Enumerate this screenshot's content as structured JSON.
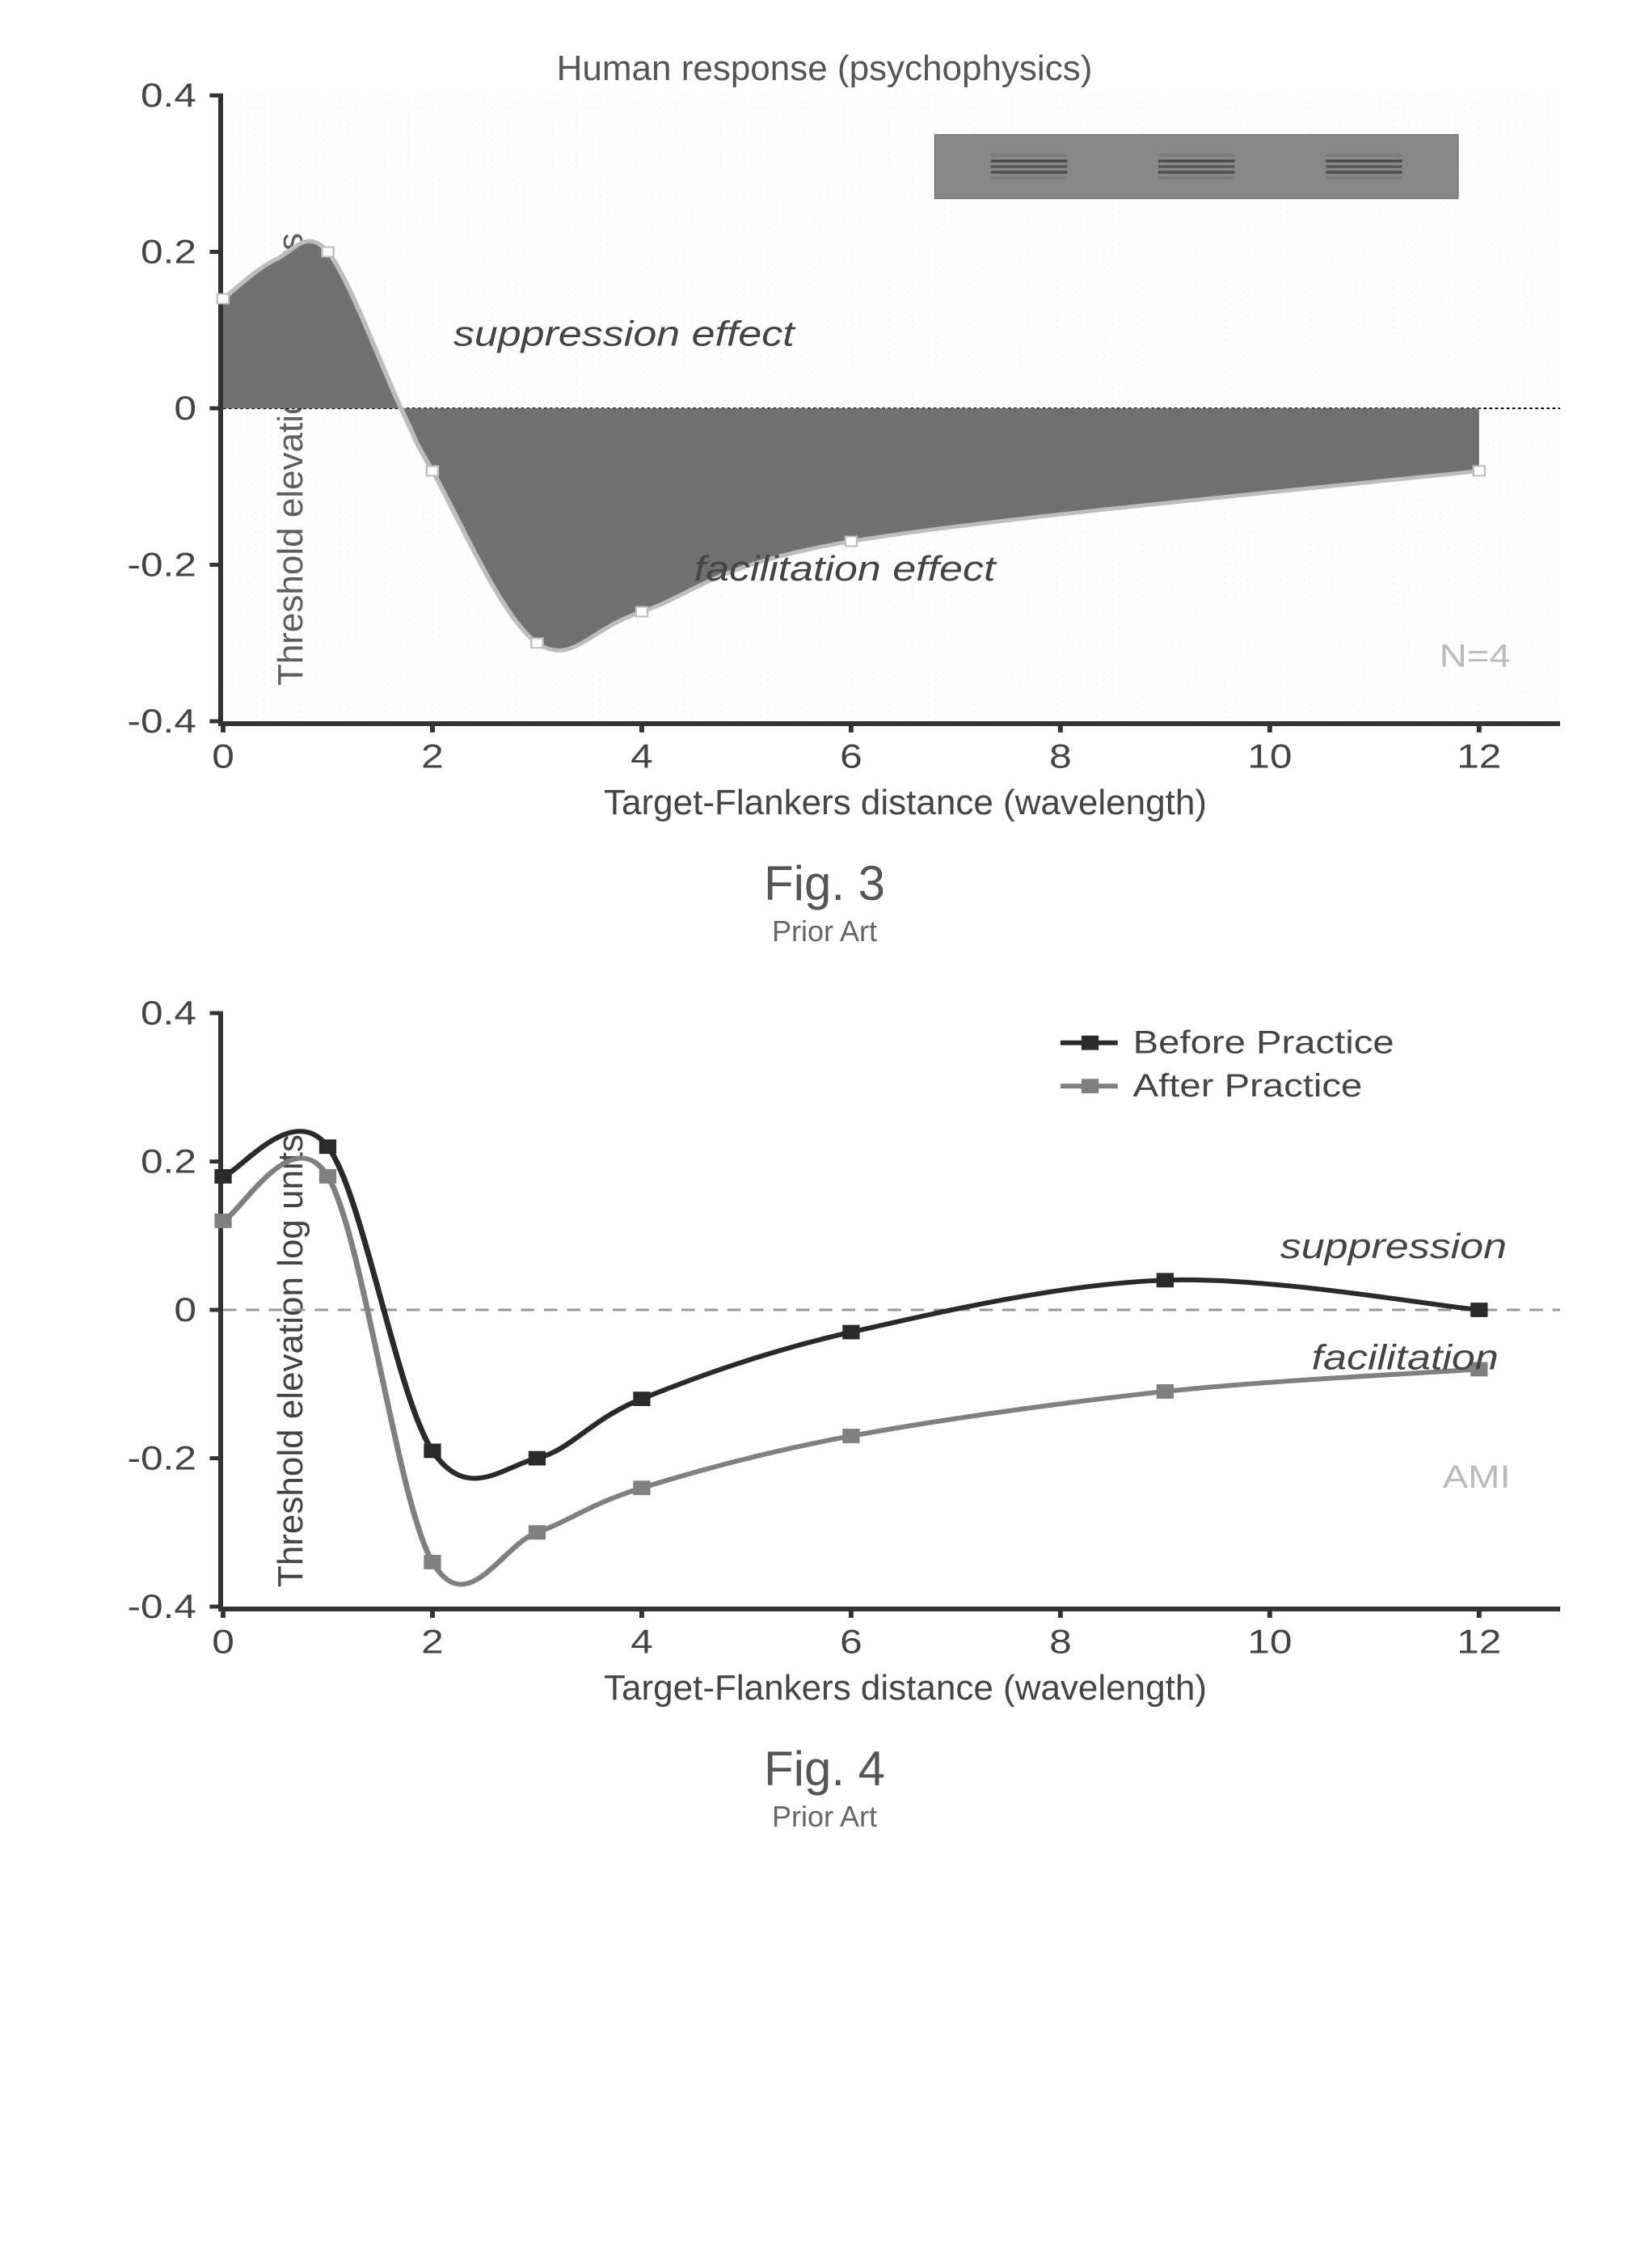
{
  "fig3": {
    "type": "area",
    "title": "Human response (psychophysics)",
    "xlabel": "Target-Flankers distance (wavelength)",
    "ylabel": "Threshold elevation log units",
    "xlim": [
      0,
      12.5
    ],
    "ylim": [
      -0.4,
      0.4
    ],
    "xticks": [
      0,
      2,
      4,
      6,
      8,
      10,
      12
    ],
    "yticks": [
      -0.4,
      -0.2,
      0,
      0.2,
      0.4
    ],
    "curve": [
      {
        "x": 0,
        "y": 0.14
      },
      {
        "x": 0.5,
        "y": 0.19
      },
      {
        "x": 1,
        "y": 0.2
      },
      {
        "x": 1.7,
        "y": 0.0
      },
      {
        "x": 2,
        "y": -0.08
      },
      {
        "x": 3,
        "y": -0.3
      },
      {
        "x": 4,
        "y": -0.26
      },
      {
        "x": 6,
        "y": -0.17
      },
      {
        "x": 12,
        "y": -0.08
      }
    ],
    "markers_x": [
      0,
      1,
      2,
      3,
      4,
      6,
      12
    ],
    "fill_color": "#707070",
    "curve_color": "#bdbdbd",
    "curve_width": 5,
    "marker_size": 12,
    "marker_stroke": "#bdbdbd",
    "marker_fill": "#ffffff",
    "baseline_color": "#000000",
    "background_noise": "#d8d8d8",
    "suppression_label": "suppression effect",
    "facilitation_label": "facilitation effect",
    "watermark": "N=4",
    "gabor_bar_fill": "#888888",
    "caption": "Fig. 3",
    "caption_sub": "Prior Art",
    "title_fontsize": 44,
    "label_fontsize": 44,
    "tick_fontsize": 42
  },
  "fig4": {
    "type": "line",
    "xlabel": "Target-Flankers distance (wavelength)",
    "ylabel": "Threshold elevation log units",
    "xlim": [
      0,
      12.5
    ],
    "ylim": [
      -0.4,
      0.4
    ],
    "xticks": [
      0,
      2,
      4,
      6,
      8,
      10,
      12
    ],
    "yticks": [
      -0.4,
      -0.2,
      0,
      0.2,
      0.4
    ],
    "series": [
      {
        "name": "Before Practice",
        "color": "#2a2a2a",
        "line_width": 6,
        "marker": "square",
        "marker_size": 18,
        "points": [
          {
            "x": 0,
            "y": 0.18
          },
          {
            "x": 1,
            "y": 0.22
          },
          {
            "x": 2,
            "y": -0.19
          },
          {
            "x": 3,
            "y": -0.2
          },
          {
            "x": 4,
            "y": -0.12
          },
          {
            "x": 6,
            "y": -0.03
          },
          {
            "x": 9,
            "y": 0.04
          },
          {
            "x": 12,
            "y": 0.0
          }
        ]
      },
      {
        "name": "After Practice",
        "color": "#808080",
        "line_width": 6,
        "marker": "square",
        "marker_size": 18,
        "points": [
          {
            "x": 0,
            "y": 0.12
          },
          {
            "x": 1,
            "y": 0.18
          },
          {
            "x": 2,
            "y": -0.34
          },
          {
            "x": 3,
            "y": -0.3
          },
          {
            "x": 4,
            "y": -0.24
          },
          {
            "x": 6,
            "y": -0.17
          },
          {
            "x": 9,
            "y": -0.11
          },
          {
            "x": 12,
            "y": -0.08
          }
        ]
      }
    ],
    "baseline_style": "dashed",
    "baseline_color": "#999999",
    "suppression_label": "suppression",
    "facilitation_label": "facilitation",
    "watermark": "AMI",
    "legend_before": "Before Practice",
    "legend_after": "After Practice",
    "caption": "Fig. 4",
    "caption_sub": "Prior Art",
    "label_fontsize": 44,
    "tick_fontsize": 42
  }
}
